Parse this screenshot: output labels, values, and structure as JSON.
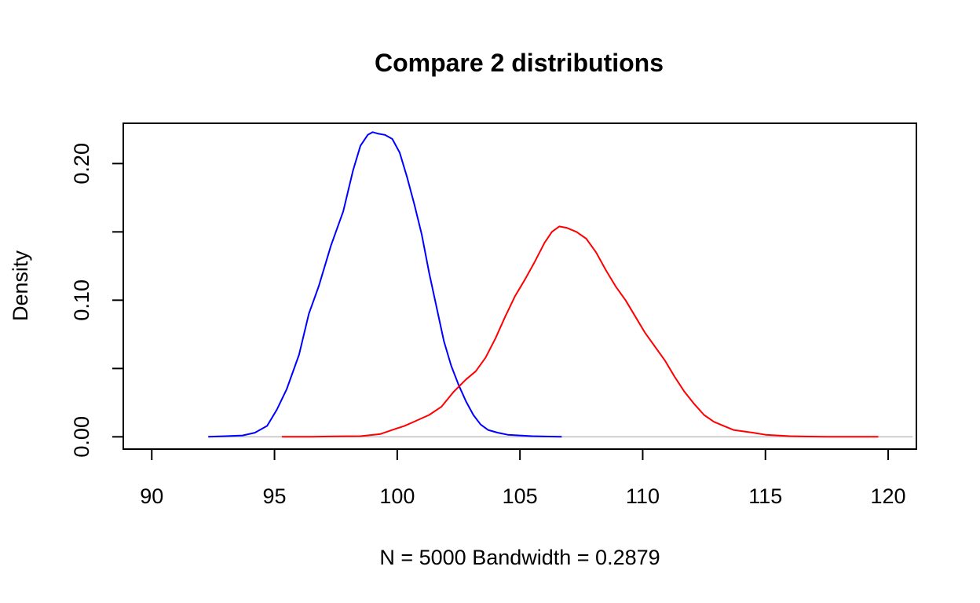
{
  "chart_data": {
    "type": "line",
    "title": "Compare 2 distributions",
    "xlabel": "N = 5000   Bandwidth = 0.2879",
    "ylabel": "Density",
    "xlim": [
      88.84,
      121.15
    ],
    "ylim": [
      -0.009,
      0.2295
    ],
    "x_ticks": [
      90,
      95,
      100,
      105,
      110,
      115,
      120
    ],
    "x_tick_labels": [
      "90",
      "95",
      "100",
      "105",
      "110",
      "115",
      "120"
    ],
    "y_ticks": [
      0.0,
      0.05,
      0.1,
      0.15,
      0.2
    ],
    "y_tick_labels": [
      "0.00",
      "",
      "0.10",
      "",
      "0.20"
    ],
    "grid": false,
    "zero_line": true,
    "colors": {
      "zero_line": "#bebebe",
      "axis": "#000000"
    },
    "series": [
      {
        "color": "#0000ff",
        "x": [
          92.3,
          93.0,
          93.7,
          94.2,
          94.7,
          95.1,
          95.5,
          96.0,
          96.4,
          96.8,
          97.3,
          97.8,
          98.2,
          98.5,
          98.8,
          99.0,
          99.2,
          99.5,
          99.8,
          100.1,
          100.4,
          100.7,
          101.0,
          101.3,
          101.6,
          101.9,
          102.2,
          102.5,
          102.8,
          103.1,
          103.4,
          103.7,
          104.1,
          104.5,
          105.0,
          105.5,
          106.2,
          106.7
        ],
        "y": [
          0.0,
          0.0005,
          0.001,
          0.003,
          0.008,
          0.02,
          0.035,
          0.06,
          0.09,
          0.11,
          0.14,
          0.165,
          0.195,
          0.213,
          0.221,
          0.223,
          0.222,
          0.221,
          0.218,
          0.208,
          0.19,
          0.17,
          0.148,
          0.12,
          0.095,
          0.07,
          0.052,
          0.038,
          0.026,
          0.016,
          0.009,
          0.005,
          0.003,
          0.0015,
          0.001,
          0.0005,
          0.0002,
          0.0
        ]
      },
      {
        "color": "#ff0000",
        "x": [
          95.3,
          96.5,
          97.5,
          98.5,
          99.3,
          99.8,
          100.3,
          100.8,
          101.3,
          101.8,
          102.3,
          102.8,
          103.2,
          103.6,
          104.0,
          104.4,
          104.8,
          105.2,
          105.6,
          106.0,
          106.3,
          106.6,
          106.9,
          107.3,
          107.7,
          108.1,
          108.5,
          108.9,
          109.3,
          109.7,
          110.1,
          110.5,
          110.9,
          111.3,
          111.7,
          112.1,
          112.5,
          112.9,
          113.3,
          113.7,
          114.1,
          114.5,
          115.0,
          115.5,
          116.0,
          116.8,
          117.5,
          118.5,
          119.6
        ],
        "y": [
          0.0,
          0.0,
          0.0003,
          0.0005,
          0.002,
          0.005,
          0.008,
          0.012,
          0.016,
          0.022,
          0.033,
          0.042,
          0.048,
          0.058,
          0.072,
          0.088,
          0.103,
          0.115,
          0.128,
          0.142,
          0.15,
          0.154,
          0.153,
          0.15,
          0.145,
          0.135,
          0.122,
          0.11,
          0.1,
          0.088,
          0.076,
          0.066,
          0.056,
          0.044,
          0.033,
          0.024,
          0.016,
          0.011,
          0.008,
          0.005,
          0.004,
          0.003,
          0.0015,
          0.001,
          0.0005,
          0.0002,
          0.0001,
          0.0,
          0.0
        ]
      }
    ]
  }
}
